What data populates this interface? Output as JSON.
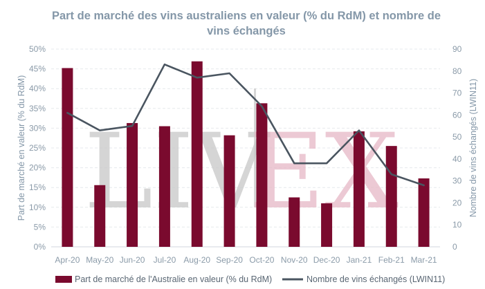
{
  "chart_data": {
    "type": "bar-line",
    "title_line1": "Part de marché des vins australiens en valeur (% du RdM) et nombre de",
    "title_line2": "vins échangés",
    "ylabel_left": "Part de marché en valeur (% du RdM)",
    "ylabel_right": "Nombre de vins échangés (LWIN11)",
    "categories": [
      "Apr-20",
      "May-20",
      "Jun-20",
      "Jul-20",
      "Aug-20",
      "Sep-20",
      "Oct-20",
      "Nov-20",
      "Dec-20",
      "Jan-21",
      "Feb-21",
      "Mar-21"
    ],
    "ylim_left": [
      0,
      50
    ],
    "yticks_left": [
      "0%",
      "5%",
      "10%",
      "15%",
      "20%",
      "25%",
      "30%",
      "35%",
      "40%",
      "45%",
      "50%"
    ],
    "ylim_right": [
      0,
      90
    ],
    "yticks_right": [
      "0",
      "10",
      "20",
      "30",
      "40",
      "50",
      "60",
      "70",
      "80",
      "90"
    ],
    "series": [
      {
        "name": "Part de marché de l'Australie en valeur (% du RdM)",
        "type": "bar",
        "axis": "left",
        "color": "#7a0a2e",
        "values": [
          45.2,
          15.6,
          31.3,
          30.5,
          46.9,
          28.2,
          36.3,
          12.5,
          11.0,
          29.2,
          25.5,
          17.3
        ]
      },
      {
        "name": "Nombre de vins échangés (LWIN11)",
        "type": "line",
        "axis": "right",
        "color": "#4a5560",
        "values": [
          61,
          53,
          55,
          83,
          77,
          79,
          64,
          38,
          38,
          53,
          33,
          28
        ]
      }
    ],
    "grid": true,
    "legend_position": "bottom"
  },
  "watermark": {
    "left": "LIV",
    "right": "EX"
  }
}
